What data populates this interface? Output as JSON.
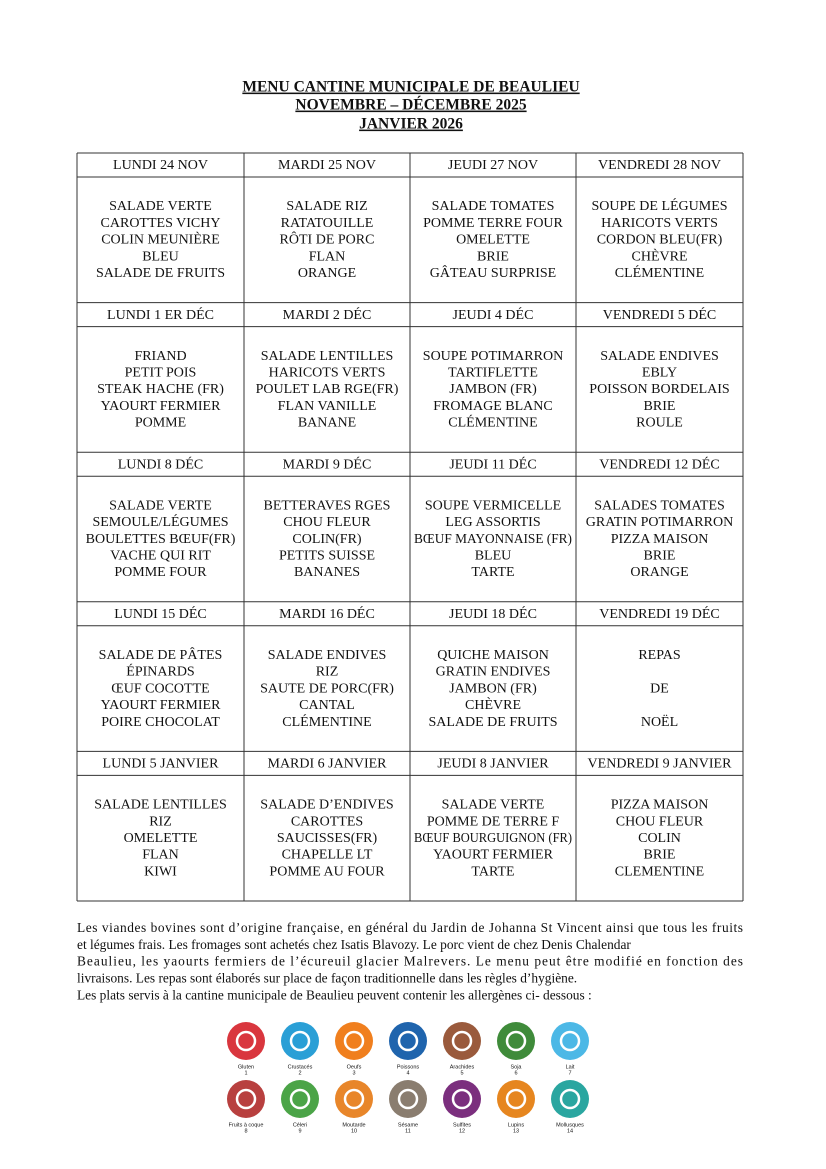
{
  "header": {
    "lines": [
      "MENU CANTINE MUNICIPALE DE BEAULIEU",
      "NOVEMBRE – DÉCEMBRE 2025",
      "JANVIER 2026"
    ]
  },
  "weeks": [
    {
      "days": [
        {
          "day": "LUNDI 24 NOV",
          "items": [
            "SALADE VERTE",
            "CAROTTES VICHY",
            "COLIN MEUNIÈRE",
            "BLEU",
            "SALADE DE FRUITS"
          ]
        },
        {
          "day": "MARDI 25 NOV",
          "items": [
            "SALADE RIZ",
            "RATATOUILLE",
            "RÔTI DE PORC",
            "FLAN",
            "ORANGE"
          ]
        },
        {
          "day": "JEUDI 27 NOV",
          "items": [
            "SALADE TOMATES",
            "POMME  TERRE FOUR",
            "OMELETTE",
            "BRIE",
            "GÂTEAU SURPRISE"
          ]
        },
        {
          "day": "VENDREDI 28 NOV",
          "items": [
            "SOUPE DE LÉGUMES",
            "HARICOTS VERTS",
            "CORDON BLEU(FR)",
            "CHÈVRE",
            "CLÉMENTINE"
          ]
        }
      ]
    },
    {
      "days": [
        {
          "day": "LUNDI 1 ER DÉC",
          "items": [
            "FRIAND",
            "PETIT POIS",
            "STEAK HACHE (FR)",
            "YAOURT FERMIER",
            "POMME"
          ]
        },
        {
          "day": "MARDI 2 DÉC",
          "items": [
            "SALADE LENTILLES",
            "HARICOTS VERTS",
            "POULET LAB RGE(FR)",
            "FLAN VANILLE",
            "BANANE"
          ]
        },
        {
          "day": "JEUDI 4 DÉC",
          "items": [
            "SOUPE POTIMARRON",
            "TARTIFLETTE",
            "JAMBON (FR)",
            "FROMAGE BLANC",
            "CLÉMENTINE"
          ]
        },
        {
          "day": "VENDREDI 5 DÉC",
          "items": [
            "SALADE ENDIVES",
            "EBLY",
            "POISSON BORDELAIS",
            "BRIE",
            "ROULE"
          ]
        }
      ]
    },
    {
      "days": [
        {
          "day": "LUNDI 8 DÉC",
          "items": [
            "SALADE VERTE",
            "SEMOULE/LÉGUMES",
            "BOULETTES BŒUF(FR)",
            "VACHE QUI RIT",
            "POMME FOUR"
          ]
        },
        {
          "day": "MARDI 9 DÉC",
          "items": [
            "BETTERAVES RGES",
            "CHOU FLEUR",
            "COLIN(FR)",
            "PETITS SUISSE",
            "BANANES"
          ]
        },
        {
          "day": "JEUDI 11 DÉC",
          "items": [
            "SOUPE VERMICELLE",
            "LEG ASSORTIS",
            "BŒUF MAYONNAISE (FR)",
            "BLEU",
            "TARTE"
          ]
        },
        {
          "day": "VENDREDI 12 DÉC",
          "items": [
            "SALADES TOMATES",
            "GRATIN POTIMARRON",
            "PIZZA MAISON",
            "BRIE",
            "ORANGE"
          ]
        }
      ]
    },
    {
      "days": [
        {
          "day": "LUNDI 15 DÉC",
          "items": [
            "SALADE DE PÂTES",
            "ÉPINARDS",
            "ŒUF COCOTTE",
            "YAOURT FERMIER",
            "POIRE CHOCOLAT"
          ]
        },
        {
          "day": "MARDI 16 DÉC",
          "items": [
            "SALADE ENDIVES",
            "RIZ",
            "SAUTE DE PORC(FR)",
            "CANTAL",
            "CLÉMENTINE"
          ]
        },
        {
          "day": "JEUDI 18 DÉC",
          "items": [
            "QUICHE MAISON",
            "GRATIN ENDIVES",
            "JAMBON (FR)",
            "CHÈVRE",
            "SALADE DE FRUITS"
          ]
        },
        {
          "day": "VENDREDI 19 DÉC",
          "items": [
            "REPAS",
            "DE",
            "NOËL"
          ]
        }
      ]
    },
    {
      "days": [
        {
          "day": "LUNDI 5 JANVIER",
          "items": [
            "SALADE  LENTILLES",
            "RIZ",
            "OMELETTE",
            "FLAN",
            "KIWI"
          ]
        },
        {
          "day": "MARDI 6 JANVIER",
          "items": [
            "SALADE D’ENDIVES",
            "CAROTTES",
            "SAUCISSES(FR)",
            "CHAPELLE LT",
            "POMME AU FOUR"
          ]
        },
        {
          "day": "JEUDI 8 JANVIER",
          "items": [
            "SALADE VERTE",
            "POMME DE TERRE F",
            "BŒUF BOURGUIGNON (FR)",
            "YAOURT FERMIER",
            "TARTE"
          ]
        },
        {
          "day": "VENDREDI 9 JANVIER",
          "items": [
            "PIZZA MAISON",
            "CHOU FLEUR",
            "COLIN",
            "BRIE",
            "CLEMENTINE"
          ]
        }
      ]
    }
  ],
  "notes": [
    "Les viandes bovines sont d’origine française, en général du Jardin de Johanna St Vincent ainsi que tous les fruits",
    "et légumes frais. Les fromages sont achetés chez Isatis Blavozy. Le porc vient de chez Denis Chalendar",
    "Beaulieu, les yaourts fermiers de l’écureuil glacier Malrevers. Le menu peut être modifié en fonction des",
    "livraisons. Les repas sont élaborés sur place de façon traditionnelle dans les règles d’hygiène.",
    "Les plats servis à la cantine municipale de Beaulieu peuvent contenir les allergènes ci- dessous :"
  ],
  "allergens": [
    {
      "name": "Gluten",
      "number": "1",
      "color": "#d9363e"
    },
    {
      "name": "Crustacés",
      "number": "2",
      "color": "#2a9fd6"
    },
    {
      "name": "Oeufs",
      "number": "3",
      "color": "#f07f1e"
    },
    {
      "name": "Poissons",
      "number": "4",
      "color": "#1f64ad"
    },
    {
      "name": "Arachides",
      "number": "5",
      "color": "#9a5a3c"
    },
    {
      "name": "Soja",
      "number": "6",
      "color": "#3f8b3a"
    },
    {
      "name": "Lait",
      "number": "7",
      "color": "#4cb8e6"
    },
    {
      "name": "Fruits à coque",
      "number": "8",
      "color": "#b8403f"
    },
    {
      "name": "Céleri",
      "number": "9",
      "color": "#4ba447"
    },
    {
      "name": "Moutarde",
      "number": "10",
      "color": "#e8862a"
    },
    {
      "name": "Sésame",
      "number": "11",
      "color": "#8a7d6f"
    },
    {
      "name": "Sulfites",
      "number": "12",
      "color": "#7b2f7e"
    },
    {
      "name": "Lupins",
      "number": "13",
      "color": "#e6861f"
    },
    {
      "name": "Mollusques",
      "number": "14",
      "color": "#2aa6a0"
    }
  ]
}
